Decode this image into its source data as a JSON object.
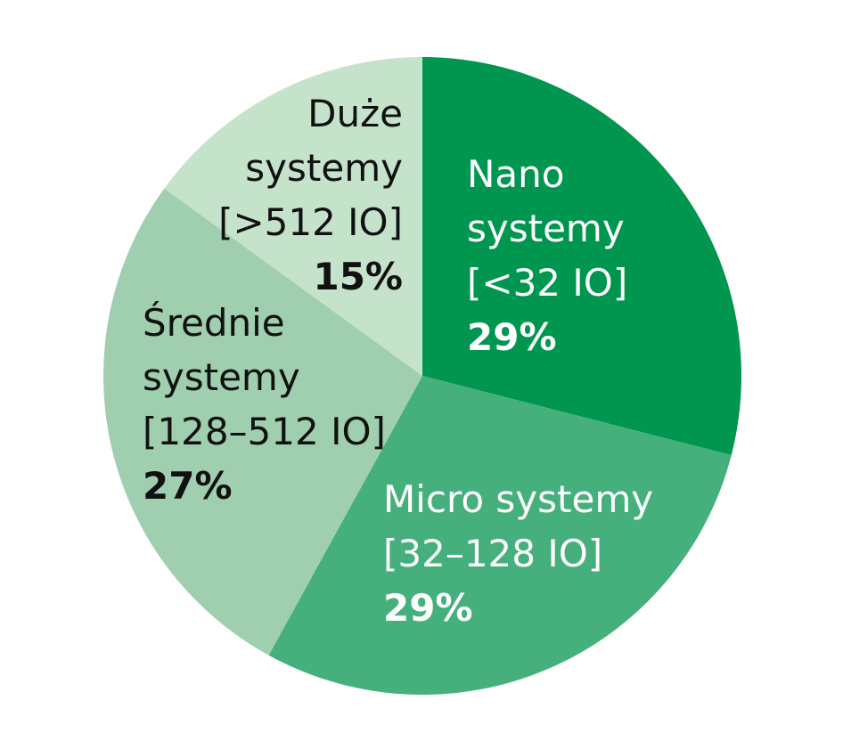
{
  "chart_data": {
    "type": "pie",
    "slices": [
      {
        "label_lines": [
          "Nano",
          "systemy",
          "[<32 IO]"
        ],
        "percent_label": "29%",
        "value": 29,
        "color": "#009650",
        "text_color": "#ffffff"
      },
      {
        "label_lines": [
          "Micro systemy",
          "[32–128 IO]"
        ],
        "percent_label": "29%",
        "value": 29,
        "color": "#45b07c",
        "text_color": "#ffffff"
      },
      {
        "label_lines": [
          "Średnie",
          "systemy",
          "[128–512 IO]"
        ],
        "percent_label": "27%",
        "value": 27,
        "color": "#9fcfae",
        "text_color": "#111111"
      },
      {
        "label_lines": [
          "Duże",
          "systemy",
          "[>512 IO]"
        ],
        "percent_label": "15%",
        "value": 15,
        "color": "#c5e2cb",
        "text_color": "#111111"
      }
    ]
  }
}
